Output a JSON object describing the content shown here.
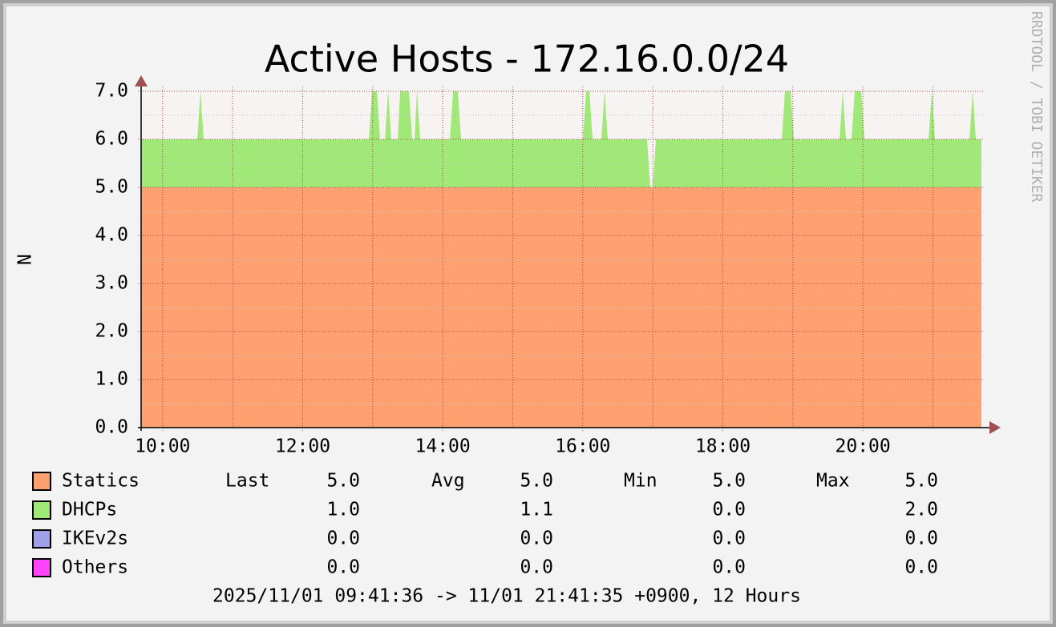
{
  "chart_data": {
    "type": "area",
    "stacked": true,
    "title": "Active Hosts - 172.16.0.0/24",
    "y_label": "N",
    "watermark": "RRDTOOL / TOBI OETIKER",
    "x": [
      9.693,
      10.495,
      10.54,
      10.586,
      12.945,
      12.99,
      13.06,
      13.106,
      13.175,
      13.22,
      13.266,
      13.358,
      13.392,
      13.518,
      13.564,
      13.598,
      13.632,
      13.678,
      14.102,
      14.148,
      14.216,
      14.262,
      16.002,
      16.048,
      16.094,
      16.14,
      16.266,
      16.312,
      16.357,
      16.918,
      16.964,
      16.999,
      17.045,
      18.842,
      18.888,
      18.968,
      19.014,
      19.667,
      19.712,
      19.758,
      19.838,
      19.884,
      19.976,
      20.022,
      20.938,
      20.984,
      21.029,
      21.522,
      21.568,
      21.614,
      21.693
    ],
    "series": [
      {
        "name": "Statics",
        "color": "#ffa070",
        "values": [
          5,
          5,
          5,
          5,
          5,
          5,
          5,
          5,
          5,
          5,
          5,
          5,
          5,
          5,
          5,
          5,
          5,
          5,
          5,
          5,
          5,
          5,
          5,
          5,
          5,
          5,
          5,
          5,
          5,
          5,
          5,
          5,
          5,
          5,
          5,
          5,
          5,
          5,
          5,
          5,
          5,
          5,
          5,
          5,
          5,
          5,
          5,
          5,
          5,
          5,
          5
        ]
      },
      {
        "name": "DHCPs",
        "color": "#a0e878",
        "values": [
          1,
          1,
          2,
          1,
          1,
          2,
          2,
          1,
          1,
          2,
          1,
          1,
          2,
          2,
          1,
          1,
          2,
          1,
          1,
          2,
          2,
          1,
          1,
          2,
          2,
          1,
          1,
          2,
          1,
          1,
          0,
          0,
          1,
          1,
          2,
          2,
          1,
          1,
          2,
          1,
          1,
          2,
          2,
          1,
          1,
          2,
          1,
          1,
          2,
          1,
          1
        ]
      },
      {
        "name": "IKEv2s",
        "color": "#a0a0e8",
        "values": [
          0,
          0,
          0,
          0,
          0,
          0,
          0,
          0,
          0,
          0,
          0,
          0,
          0,
          0,
          0,
          0,
          0,
          0,
          0,
          0,
          0,
          0,
          0,
          0,
          0,
          0,
          0,
          0,
          0,
          0,
          0,
          0,
          0,
          0,
          0,
          0,
          0,
          0,
          0,
          0,
          0,
          0,
          0,
          0,
          0,
          0,
          0,
          0,
          0,
          0,
          0
        ]
      },
      {
        "name": "Others",
        "color": "#ff44ff",
        "values": [
          0,
          0,
          0,
          0,
          0,
          0,
          0,
          0,
          0,
          0,
          0,
          0,
          0,
          0,
          0,
          0,
          0,
          0,
          0,
          0,
          0,
          0,
          0,
          0,
          0,
          0,
          0,
          0,
          0,
          0,
          0,
          0,
          0,
          0,
          0,
          0,
          0,
          0,
          0,
          0,
          0,
          0,
          0,
          0,
          0,
          0,
          0,
          0,
          0,
          0,
          0
        ]
      }
    ],
    "xlim": [
      9.693,
      21.693
    ],
    "xticks": [
      {
        "value": 10,
        "label": "10:00"
      },
      {
        "value": 12,
        "label": "12:00"
      },
      {
        "value": 14,
        "label": "14:00"
      },
      {
        "value": 16,
        "label": "16:00"
      },
      {
        "value": 18,
        "label": "18:00"
      },
      {
        "value": 20,
        "label": "20:00"
      }
    ],
    "x_minor_grid": [
      11,
      13,
      15,
      17,
      19,
      21
    ],
    "ylim": [
      0,
      7
    ],
    "yticks": [
      {
        "value": 0,
        "label": "0.0"
      },
      {
        "value": 1,
        "label": "1.0"
      },
      {
        "value": 2,
        "label": "2.0"
      },
      {
        "value": 3,
        "label": "3.0"
      },
      {
        "value": 4,
        "label": "4.0"
      },
      {
        "value": 5,
        "label": "5.0"
      },
      {
        "value": 6,
        "label": "6.0"
      },
      {
        "value": 7,
        "label": "7.0"
      }
    ],
    "y_minor_grid": [
      0.5,
      1.5,
      2.5,
      3.5,
      4.5,
      5.5,
      6.5
    ],
    "grid": true,
    "stats": {
      "headers": [
        "Last",
        "Avg",
        "Min",
        "Max"
      ],
      "rows": [
        [
          "5.0",
          "5.0",
          "5.0",
          "5.0"
        ],
        [
          "1.0",
          "1.1",
          "0.0",
          "2.0"
        ],
        [
          "0.0",
          "0.0",
          "0.0",
          "0.0"
        ],
        [
          "0.0",
          "0.0",
          "0.0",
          "0.0"
        ]
      ]
    },
    "footer": "2025/11/01 09:41:36 -> 11/01 21:41:35 +0900, 12 Hours"
  }
}
